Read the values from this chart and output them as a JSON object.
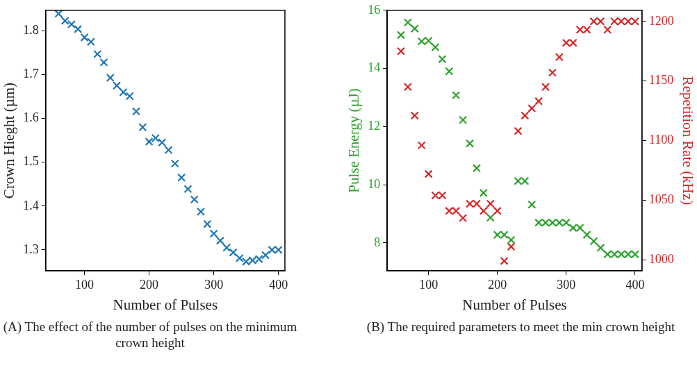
{
  "chart_data": [
    {
      "type": "scatter",
      "xlabel": "Number of Pulses",
      "ylabel": "Crown Hieght (µm)",
      "annotations": [
        "(A) The effect of the number of pulses on the minimum crown height"
      ],
      "marker": "cross",
      "xlim": [
        40,
        410
      ],
      "xticks": [
        100,
        200,
        300,
        400
      ],
      "ylim": [
        1.252,
        1.847
      ],
      "yticks": [
        1.3,
        1.4,
        1.5,
        1.6,
        1.7,
        1.8
      ],
      "x": [
        60,
        70,
        80,
        90,
        100,
        110,
        120,
        130,
        140,
        150,
        160,
        170,
        180,
        190,
        200,
        210,
        220,
        230,
        240,
        250,
        260,
        270,
        280,
        290,
        300,
        310,
        320,
        330,
        340,
        350,
        360,
        370,
        380,
        390,
        400
      ],
      "series": [
        {
          "color": "#1f77b4",
          "values": [
            1.839,
            1.823,
            1.815,
            1.804,
            1.785,
            1.775,
            1.747,
            1.728,
            1.693,
            1.675,
            1.66,
            1.651,
            1.616,
            1.58,
            1.547,
            1.555,
            1.545,
            1.528,
            1.497,
            1.465,
            1.439,
            1.415,
            1.387,
            1.359,
            1.337,
            1.321,
            1.305,
            1.294,
            1.281,
            1.273,
            1.276,
            1.279,
            1.288,
            1.3,
            1.3
          ]
        }
      ]
    },
    {
      "type": "scatter",
      "xlabel": "Number of Pulses",
      "ylabel": "Pulse Energy (µJ)",
      "y2label": "Repetition Rate (kHz)",
      "annotations": [
        "(B) The required parameters to meet the min crown height"
      ],
      "marker": "cross",
      "xlim": [
        40,
        410
      ],
      "xticks": [
        100,
        200,
        300,
        400
      ],
      "ylim": [
        7.04,
        16
      ],
      "yticks": [
        8,
        10,
        12,
        14,
        16
      ],
      "y2lim": [
        990.7,
        1209.3
      ],
      "y2ticks": [
        1000,
        1050,
        1100,
        1150,
        1200
      ],
      "x": [
        60,
        70,
        80,
        90,
        100,
        110,
        120,
        130,
        140,
        150,
        160,
        170,
        180,
        190,
        200,
        210,
        220,
        230,
        240,
        250,
        260,
        270,
        280,
        290,
        300,
        310,
        320,
        330,
        340,
        350,
        360,
        370,
        380,
        390,
        400
      ],
      "series": [
        {
          "color": "#2ca02c",
          "values": [
            15.15,
            15.58,
            15.37,
            14.93,
            14.95,
            14.73,
            14.32,
            13.9,
            13.08,
            12.23,
            11.42,
            10.57,
            9.72,
            8.87,
            8.28,
            8.28,
            8.1,
            10.13,
            10.13,
            9.32,
            8.7,
            8.7,
            8.7,
            8.7,
            8.7,
            8.52,
            8.52,
            8.28,
            8.06,
            7.83,
            7.61,
            7.61,
            7.61,
            7.61,
            7.61
          ]
        },
        {
          "color": "#d62728",
          "axis": "y2",
          "values": [
            1175,
            1145,
            1121,
            1096,
            1072,
            1054,
            1054,
            1041,
            1041,
            1035,
            1047,
            1047,
            1041,
            1047,
            1041,
            999,
            1011,
            1108,
            1121,
            1127,
            1133,
            1145,
            1157,
            1170,
            1182,
            1182,
            1193,
            1193,
            1200,
            1200,
            1193,
            1200,
            1200,
            1200,
            1200
          ]
        }
      ]
    }
  ]
}
